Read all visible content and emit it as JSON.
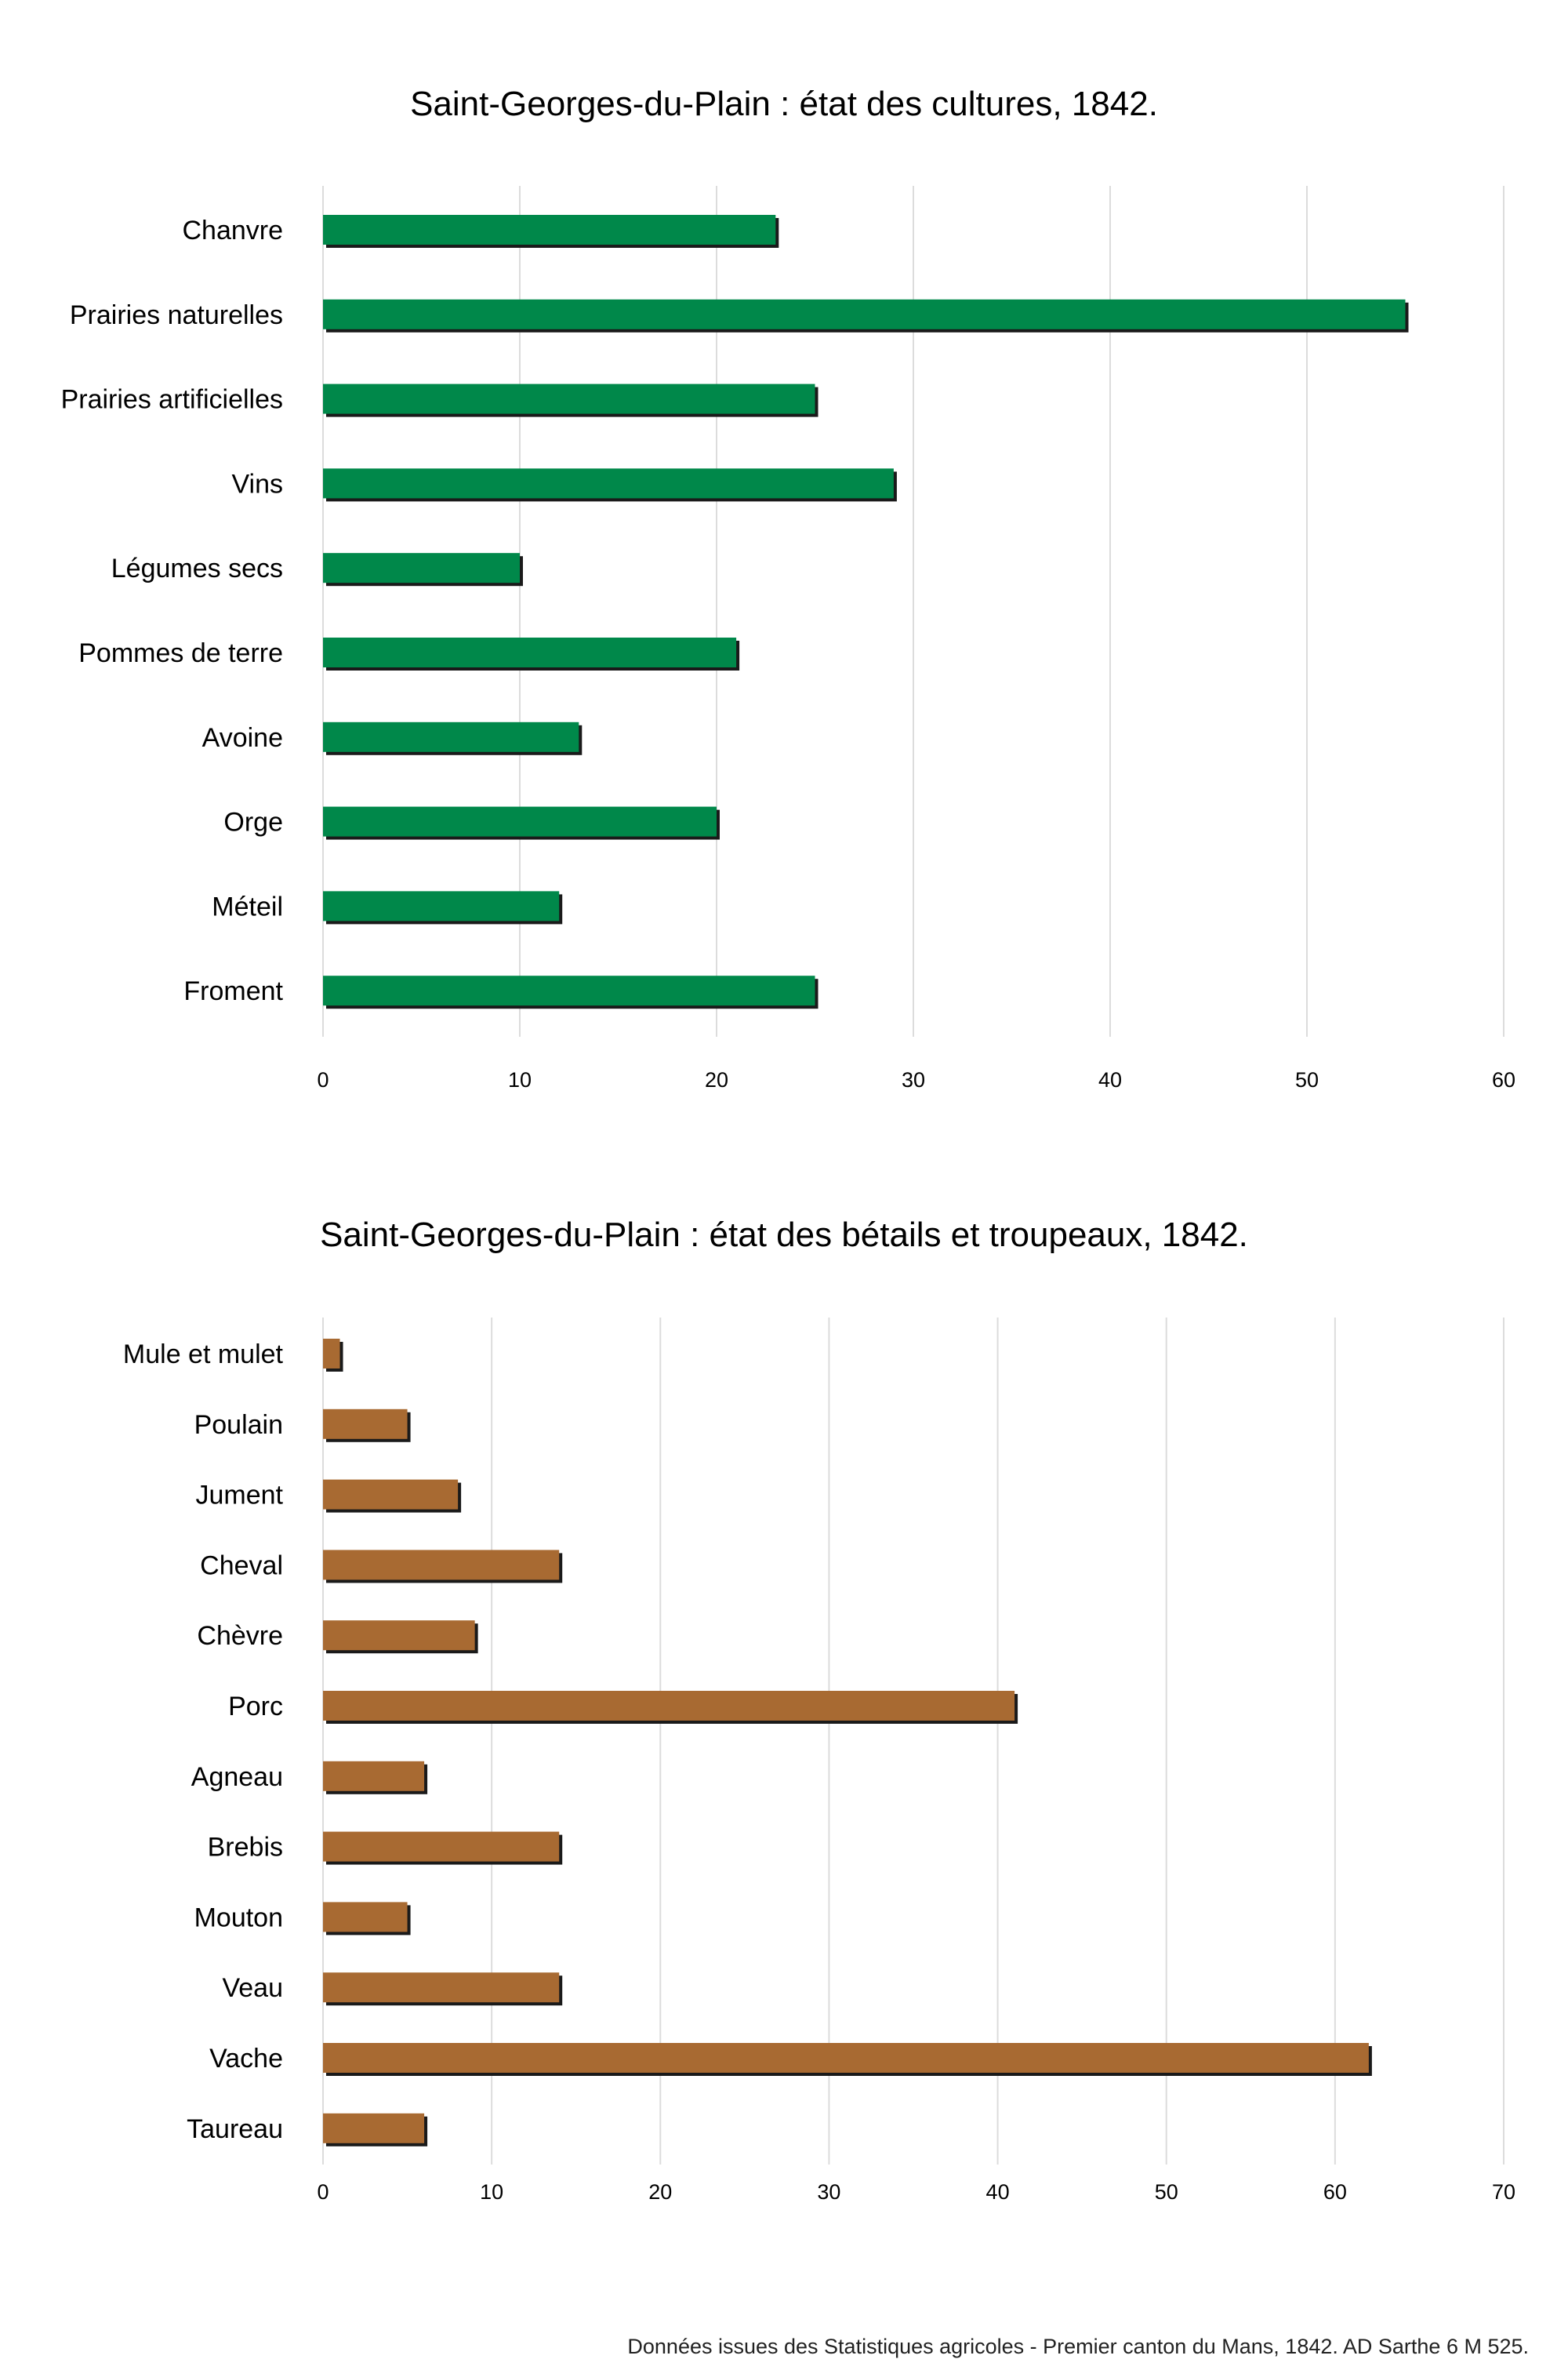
{
  "chart_data": [
    {
      "type": "bar",
      "orientation": "horizontal",
      "title": "Saint-Georges-du-Plain : état des cultures, 1842.",
      "categories": [
        "Chanvre",
        "Prairies naturelles",
        "Prairies artificielles",
        "Vins",
        "Légumes secs",
        "Pommes de terre",
        "Avoine",
        "Orge",
        "Méteil",
        "Froment"
      ],
      "values": [
        23,
        55,
        25,
        29,
        10,
        21,
        13,
        20,
        12,
        25
      ],
      "xlim": [
        0,
        60
      ],
      "xticks": [
        0,
        10,
        20,
        30,
        40,
        50,
        60
      ],
      "grid": "vertical",
      "bar_color": "#00884A"
    },
    {
      "type": "bar",
      "orientation": "horizontal",
      "title": "Saint-Georges-du-Plain : état des bétails et troupeaux, 1842.",
      "categories": [
        "Mule et mulet",
        "Poulain",
        "Jument",
        "Cheval",
        "Chèvre",
        "Porc",
        "Agneau",
        "Brebis",
        "Mouton",
        "Veau",
        "Vache",
        "Taureau"
      ],
      "values": [
        1,
        5,
        8,
        14,
        9,
        41,
        6,
        14,
        5,
        14,
        62,
        6
      ],
      "xlim": [
        0,
        70
      ],
      "xticks": [
        0,
        10,
        20,
        30,
        40,
        50,
        60,
        70
      ],
      "grid": "vertical",
      "bar_color": "#A86A32"
    }
  ],
  "footnote": "Données issues des Statistiques agricoles - Premier canton du Mans, 1842. AD Sarthe 6 M 525.",
  "colors": {
    "shadow": "#1a1a1a",
    "grid": "#dcdcdc"
  }
}
